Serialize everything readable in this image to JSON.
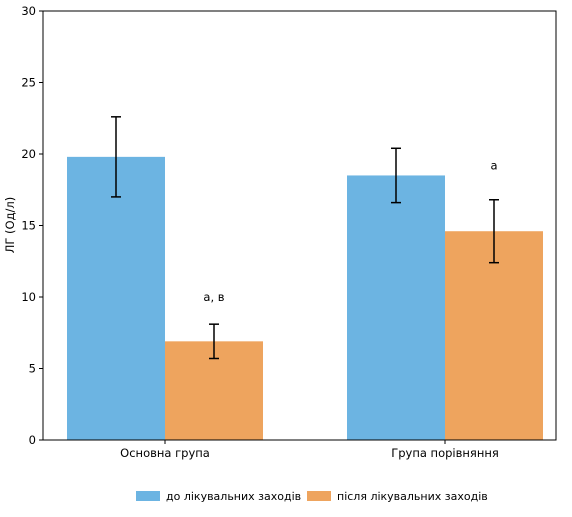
{
  "chart_data": {
    "type": "bar",
    "categories": [
      "Основна група",
      "Група порівняння"
    ],
    "ylabel": "ЛГ (Од/л)",
    "xlabel": "",
    "title": "",
    "ylim": [
      0,
      30
    ],
    "yticks": [
      0,
      5,
      10,
      15,
      20,
      25,
      30
    ],
    "grid": false,
    "legend_position": "bottom-center",
    "series": [
      {
        "name": "до лікувальних заходів",
        "color": "#6cb4e2",
        "values": [
          19.8,
          18.5
        ],
        "errors": [
          2.8,
          1.9
        ]
      },
      {
        "name": "після лікувальних заходів",
        "color": "#eea45e",
        "values": [
          6.9,
          14.6
        ],
        "errors": [
          1.2,
          2.2
        ]
      }
    ],
    "annotations": [
      {
        "category_index": 0,
        "series_index": 1,
        "text": "а, в",
        "y": 10
      },
      {
        "category_index": 1,
        "series_index": 1,
        "text": "а",
        "y": 19.2
      }
    ]
  }
}
